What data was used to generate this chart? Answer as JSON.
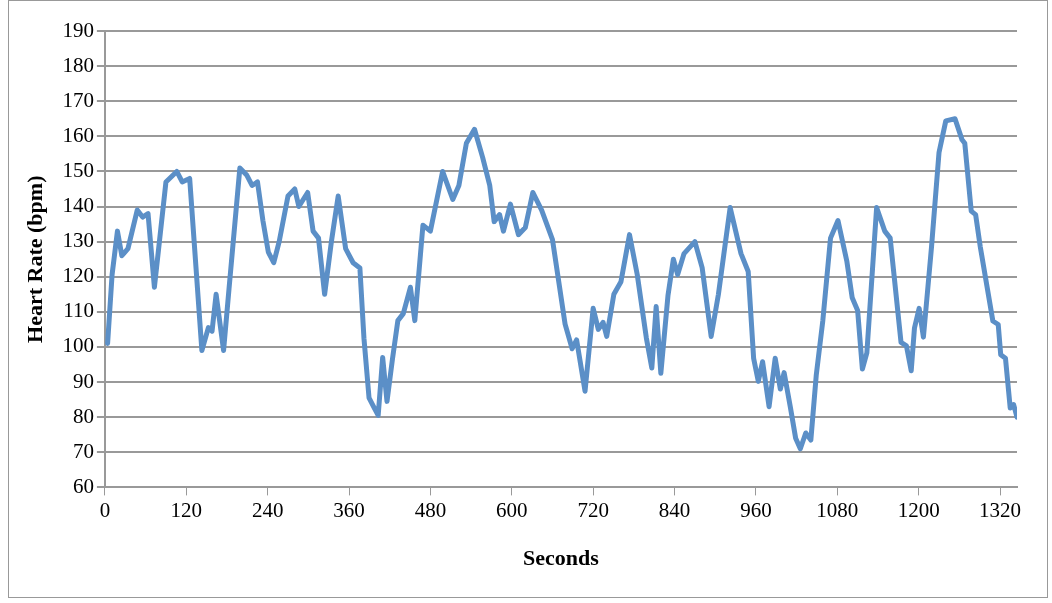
{
  "chart_data": {
    "type": "line",
    "xlabel": "Seconds",
    "ylabel": "Heart Rate (bpm)",
    "xlim": [
      0,
      1345
    ],
    "xticks": [
      0,
      120,
      240,
      360,
      480,
      600,
      720,
      840,
      960,
      1080,
      1200,
      1320
    ],
    "ylim": [
      60,
      190
    ],
    "yticks": [
      60,
      70,
      80,
      90,
      100,
      110,
      120,
      130,
      140,
      150,
      160,
      170,
      180,
      190
    ],
    "grid": "y",
    "legend": false,
    "marker": "none",
    "line_style": "solid",
    "x": [
      4,
      10.6,
      18.5,
      25,
      34,
      47.7,
      55.6,
      63.6,
      73,
      90,
      106,
      114,
      125,
      143,
      152.6,
      158,
      164,
      175,
      183,
      199,
      209,
      217,
      225,
      233,
      241,
      249,
      257,
      270,
      280,
      286,
      299,
      307,
      315,
      324,
      334,
      344,
      355,
      366,
      376,
      382,
      389.5,
      397.5,
      403,
      409.6,
      416,
      424,
      432,
      440,
      450.5,
      457,
      469,
      480,
      498,
      513,
      522,
      533,
      545,
      557,
      567.5,
      574,
      582,
      587.7,
      598,
      609.8,
      620,
      631,
      644,
      660,
      678.6,
      689,
      695.6,
      708,
      720,
      727.6,
      734.6,
      740,
      750.5,
      761,
      773.6,
      785,
      798.5,
      806.5,
      812.9,
      819.8,
      830.3,
      838.3,
      844.6,
      854,
      870,
      880.7,
      894,
      904.7,
      922,
      938,
      948.6,
      956.6,
      963.5,
      969.8,
      979.4,
      988.4,
      996,
      1001.6,
      1011,
      1018.6,
      1025.5,
      1033.5,
      1041,
      1049,
      1058.6,
      1070,
      1081,
      1094,
      1102,
      1110,
      1117,
      1123.6,
      1138,
      1150,
      1158,
      1174,
      1182,
      1189,
      1193.8,
      1200.7,
      1207,
      1219,
      1230,
      1240,
      1253.6,
      1264,
      1268,
      1277.5,
      1284,
      1290.8,
      1301.4,
      1309.4,
      1317.3,
      1321,
      1328,
      1335,
      1340,
      1345
    ],
    "series": [
      {
        "color": "#5b8fc7",
        "values": [
          101,
          120.6,
          133,
          126,
          128,
          139,
          137,
          138,
          117,
          147,
          150,
          147,
          148,
          99,
          105.5,
          104.5,
          115,
          99,
          116.5,
          151,
          149,
          146,
          147,
          136,
          127,
          124,
          130,
          143,
          145,
          140,
          144,
          133,
          131,
          115,
          130,
          143,
          128,
          124,
          122.5,
          102.5,
          85.5,
          82.5,
          80.5,
          97,
          84.5,
          96.5,
          107.5,
          109.5,
          117,
          107.5,
          134.7,
          133,
          150,
          142,
          146,
          158,
          162,
          154,
          146,
          135.7,
          137.7,
          133,
          140.7,
          132,
          134,
          144,
          139,
          130.6,
          106.5,
          99.5,
          102,
          87.4,
          111,
          105,
          107,
          103,
          115,
          118.6,
          132,
          120.6,
          102.5,
          94,
          111.5,
          92.5,
          114.6,
          125,
          120.6,
          126.6,
          130,
          122.6,
          103,
          115,
          139.7,
          126.6,
          121.5,
          96.8,
          90.2,
          95.8,
          83,
          96.8,
          88,
          92.7,
          82.6,
          74,
          71,
          75.5,
          73.5,
          92,
          107.4,
          131,
          136,
          124.5,
          114,
          110.4,
          93.7,
          98.3,
          139.7,
          133,
          131,
          101.3,
          100.3,
          93.2,
          105.4,
          111,
          102.8,
          128.6,
          155.4,
          164.4,
          165,
          159,
          158,
          138.7,
          137.7,
          128.6,
          116.5,
          107.4,
          106.4,
          97.8,
          96.8,
          82.6,
          83.6,
          80
        ]
      }
    ]
  }
}
